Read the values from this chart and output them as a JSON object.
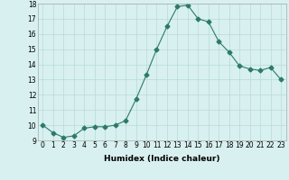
{
  "xlabel": "Humidex (Indice chaleur)",
  "x": [
    0,
    1,
    2,
    3,
    4,
    5,
    6,
    7,
    8,
    9,
    10,
    11,
    12,
    13,
    14,
    15,
    16,
    17,
    18,
    19,
    20,
    21,
    22,
    23
  ],
  "y": [
    10.0,
    9.5,
    9.2,
    9.3,
    9.8,
    9.9,
    9.9,
    10.0,
    10.3,
    11.7,
    13.3,
    15.0,
    16.5,
    17.8,
    17.9,
    17.0,
    16.8,
    15.5,
    14.8,
    13.9,
    13.7,
    13.6,
    13.8,
    13.0
  ],
  "ylim": [
    9,
    18
  ],
  "xlim": [
    -0.5,
    23.5
  ],
  "yticks": [
    9,
    10,
    11,
    12,
    13,
    14,
    15,
    16,
    17,
    18
  ],
  "xticks": [
    0,
    1,
    2,
    3,
    4,
    5,
    6,
    7,
    8,
    9,
    10,
    11,
    12,
    13,
    14,
    15,
    16,
    17,
    18,
    19,
    20,
    21,
    22,
    23
  ],
  "line_color": "#2d7a6a",
  "marker": "D",
  "marker_size": 2.5,
  "bg_color": "#d8f0f0",
  "grid_color": "#b8dada",
  "tick_fontsize": 5.5,
  "label_fontsize": 6.5,
  "label_fontweight": "bold"
}
